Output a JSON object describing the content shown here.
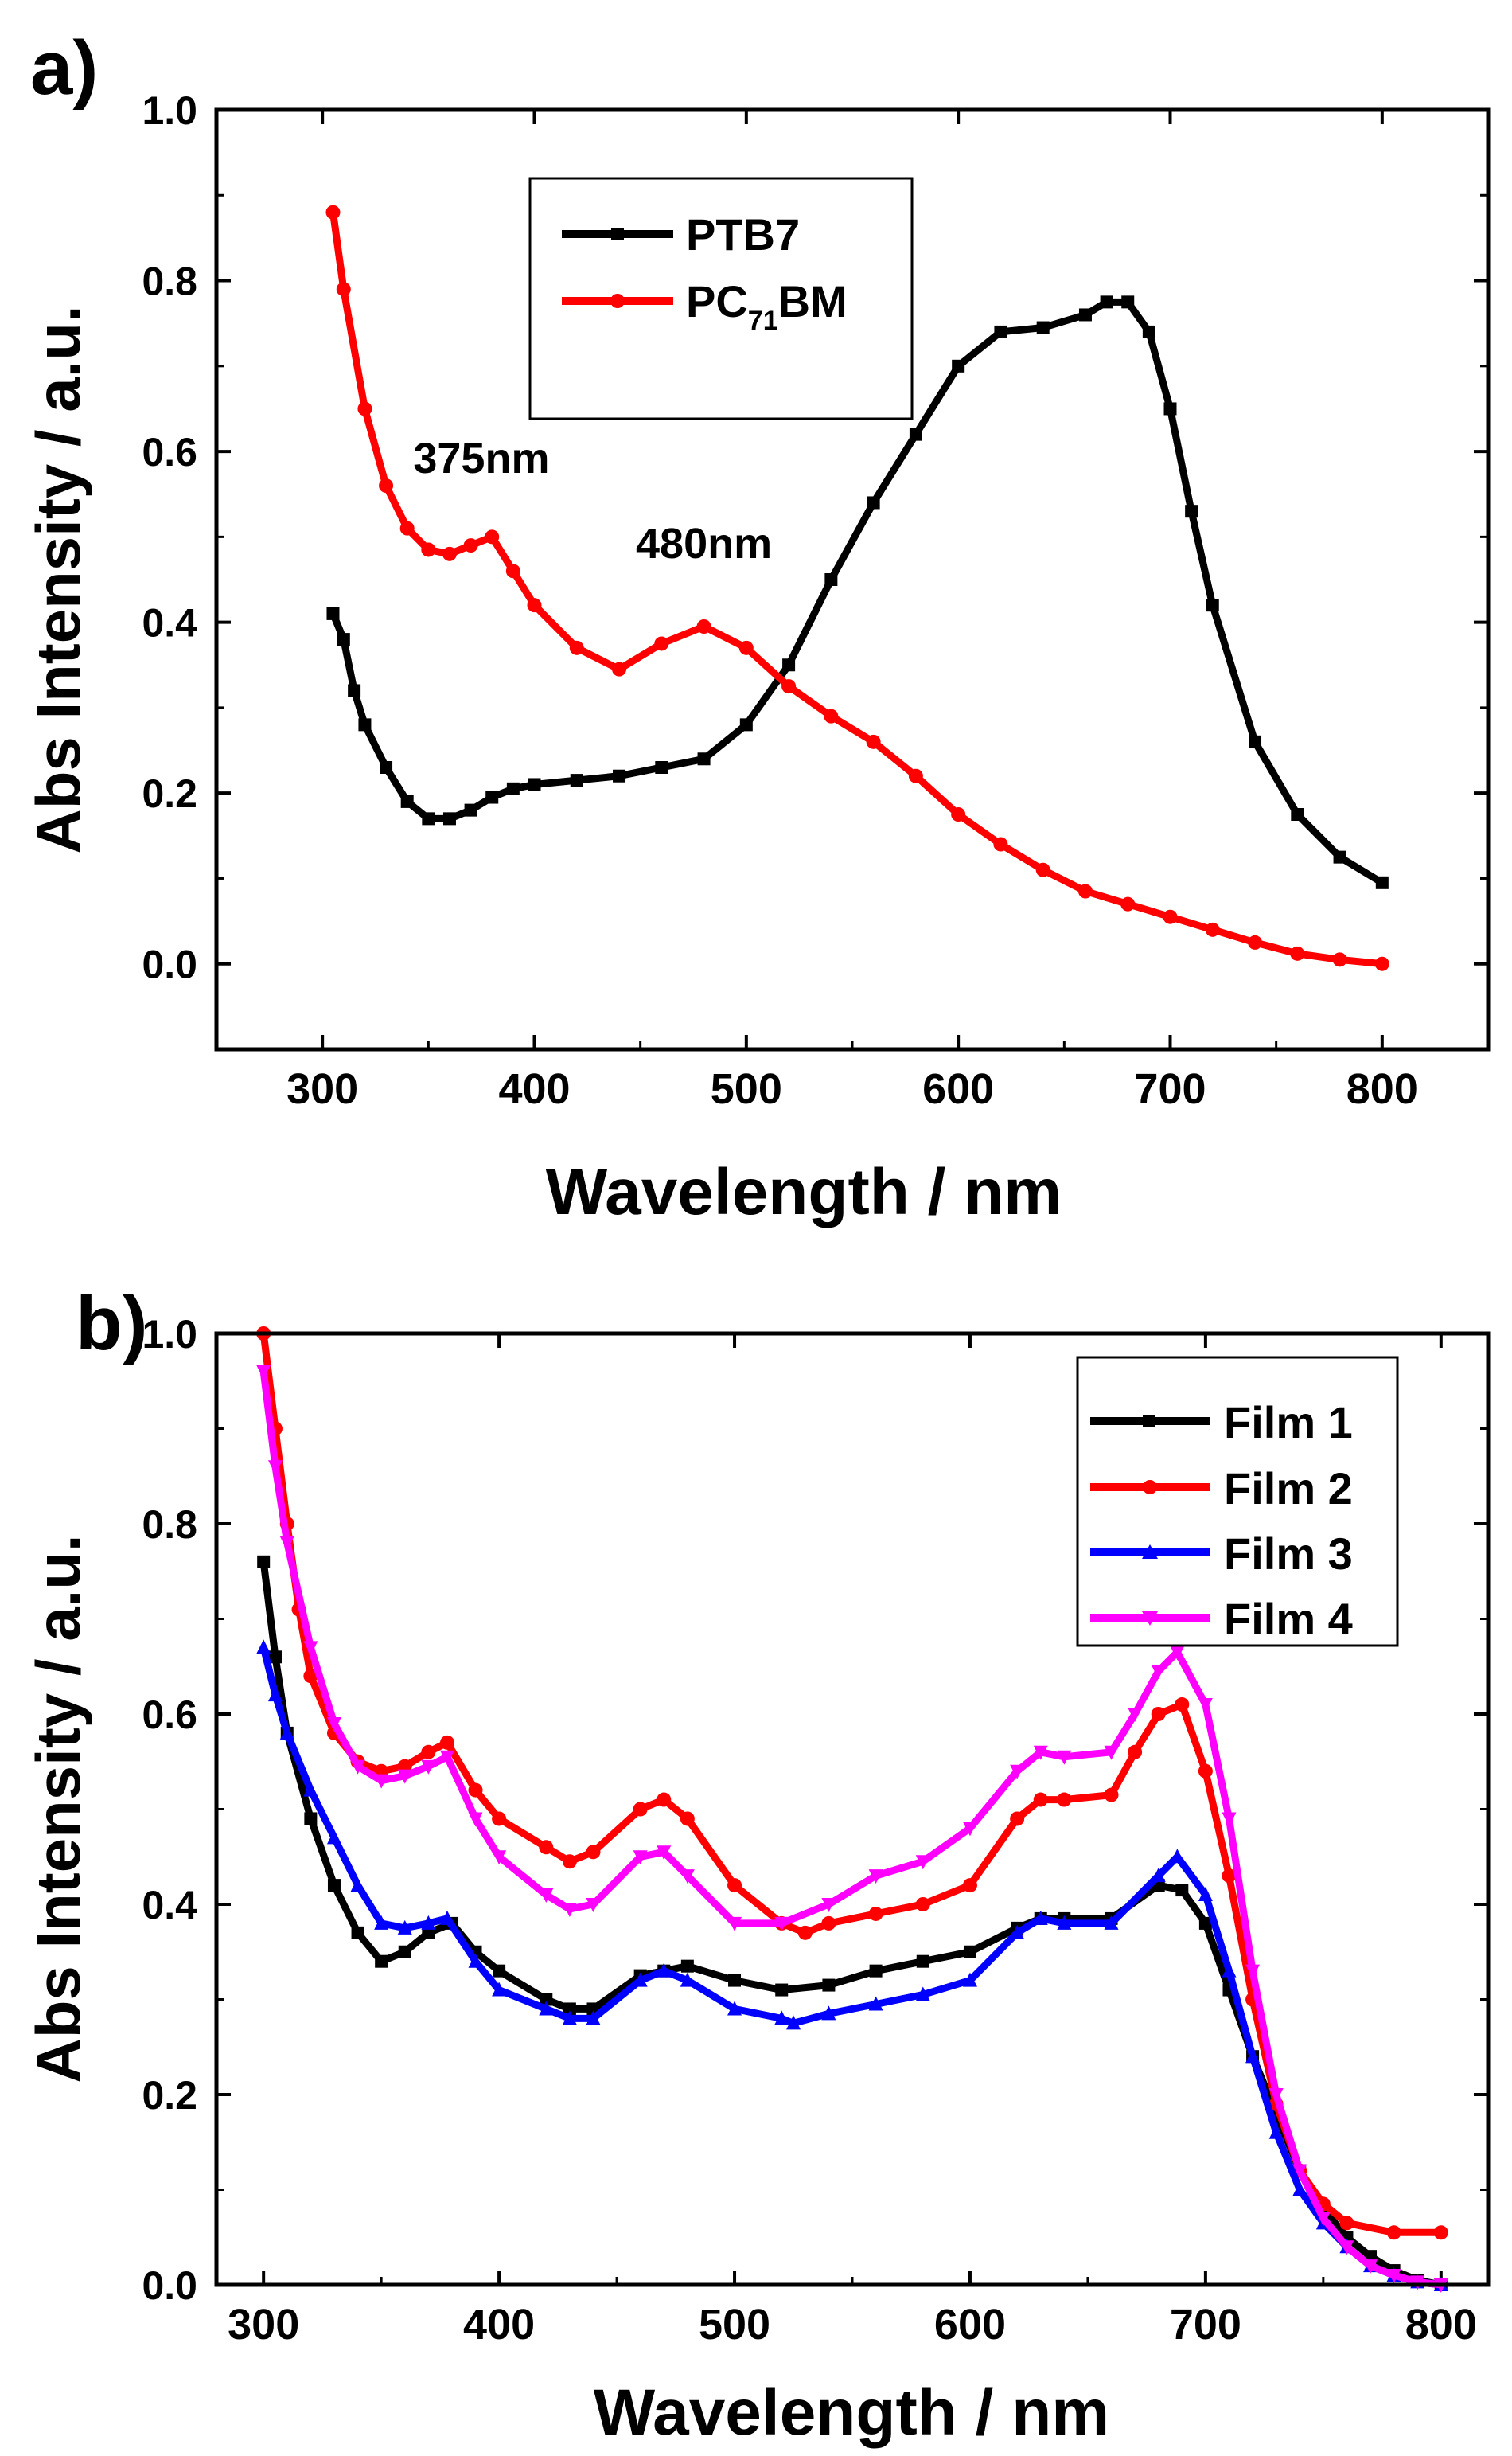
{
  "chart_data": [
    {
      "type": "line",
      "panel_label": "a)",
      "xlabel": "Wavelength / nm",
      "ylabel": "Abs Intensity / a.u.",
      "xlim": [
        250,
        850
      ],
      "ylim": [
        -0.1,
        1.0
      ],
      "xticks": [
        300,
        400,
        500,
        600,
        700,
        800
      ],
      "yticks": [
        0.0,
        0.2,
        0.4,
        0.6,
        0.8,
        1.0
      ],
      "xtick_labels": [
        "300",
        "400",
        "500",
        "600",
        "700",
        "800"
      ],
      "ytick_labels": [
        "0.0",
        "0.2",
        "0.4",
        "0.6",
        "0.8",
        "1.0"
      ],
      "legend_position": "top-left",
      "legend": [
        {
          "label": "PTB7",
          "marker": "square",
          "color": "#000000"
        },
        {
          "label_main": "PC",
          "label_sub": "71",
          "label_tail": "BM",
          "marker": "circle",
          "color": "#ff0000"
        }
      ],
      "annotations": [
        {
          "text": "375nm",
          "x": 375,
          "y": 0.575
        },
        {
          "text": "480nm",
          "x": 480,
          "y": 0.475
        }
      ],
      "series": [
        {
          "name": "PTB7",
          "color": "#000000",
          "marker": "square",
          "x": [
            305,
            310,
            315,
            320,
            330,
            340,
            350,
            360,
            370,
            380,
            390,
            400,
            420,
            440,
            460,
            480,
            500,
            520,
            540,
            560,
            580,
            600,
            620,
            640,
            660,
            670,
            680,
            690,
            700,
            710,
            720,
            740,
            760,
            780,
            800
          ],
          "y": [
            0.41,
            0.38,
            0.32,
            0.28,
            0.23,
            0.19,
            0.17,
            0.17,
            0.18,
            0.195,
            0.205,
            0.21,
            0.215,
            0.22,
            0.23,
            0.24,
            0.28,
            0.35,
            0.45,
            0.54,
            0.62,
            0.7,
            0.74,
            0.745,
            0.76,
            0.775,
            0.775,
            0.74,
            0.65,
            0.53,
            0.42,
            0.26,
            0.175,
            0.125,
            0.095
          ]
        },
        {
          "name": "PC71BM",
          "color": "#ff0000",
          "marker": "circle",
          "x": [
            305,
            310,
            320,
            330,
            340,
            350,
            360,
            370,
            380,
            390,
            400,
            420,
            440,
            460,
            480,
            500,
            520,
            540,
            560,
            580,
            600,
            620,
            640,
            660,
            680,
            700,
            720,
            740,
            760,
            780,
            800
          ],
          "y": [
            0.88,
            0.79,
            0.65,
            0.56,
            0.51,
            0.485,
            0.48,
            0.49,
            0.5,
            0.46,
            0.42,
            0.37,
            0.345,
            0.375,
            0.395,
            0.37,
            0.325,
            0.29,
            0.26,
            0.22,
            0.175,
            0.14,
            0.11,
            0.085,
            0.07,
            0.055,
            0.04,
            0.025,
            0.012,
            0.005,
            0.0
          ]
        }
      ]
    },
    {
      "type": "line",
      "panel_label": "b)",
      "xlabel": "Wavelength / nm",
      "ylabel": "Abs Intensity / a.u.",
      "xlim": [
        280,
        820
      ],
      "ylim": [
        0.0,
        1.0
      ],
      "xticks": [
        300,
        400,
        500,
        600,
        700,
        800
      ],
      "yticks": [
        0.0,
        0.2,
        0.4,
        0.6,
        0.8,
        1.0
      ],
      "xtick_labels": [
        "300",
        "400",
        "500",
        "600",
        "700",
        "800"
      ],
      "ytick_labels": [
        "0.0",
        "0.2",
        "0.4",
        "0.6",
        "0.8",
        "1.0"
      ],
      "legend_position": "top-right",
      "legend": [
        {
          "label": "Film 1",
          "marker": "square",
          "color": "#000000"
        },
        {
          "label": "Film 2",
          "marker": "circle",
          "color": "#ff0000"
        },
        {
          "label": "Film 3",
          "marker": "triangle-up",
          "color": "#0000ff"
        },
        {
          "label": "Film 4",
          "marker": "triangle-down",
          "color": "#ff00ff"
        }
      ],
      "series": [
        {
          "name": "Film 1",
          "color": "#000000",
          "marker": "square",
          "x": [
            300,
            305,
            310,
            320,
            330,
            340,
            350,
            360,
            370,
            380,
            390,
            400,
            420,
            430,
            440,
            460,
            470,
            480,
            500,
            520,
            540,
            560,
            580,
            600,
            620,
            630,
            640,
            660,
            680,
            690,
            700,
            710,
            720,
            730,
            740,
            750,
            760,
            770,
            780,
            790,
            800
          ],
          "y": [
            0.76,
            0.66,
            0.58,
            0.49,
            0.42,
            0.37,
            0.34,
            0.35,
            0.37,
            0.38,
            0.35,
            0.33,
            0.3,
            0.29,
            0.29,
            0.325,
            0.33,
            0.335,
            0.32,
            0.31,
            0.315,
            0.33,
            0.34,
            0.35,
            0.375,
            0.385,
            0.385,
            0.385,
            0.42,
            0.415,
            0.38,
            0.31,
            0.24,
            0.18,
            0.12,
            0.08,
            0.05,
            0.03,
            0.015,
            0.005,
            0.0
          ]
        },
        {
          "name": "Film 2",
          "color": "#ff0000",
          "marker": "circle",
          "x": [
            300,
            305,
            310,
            315,
            320,
            330,
            340,
            350,
            360,
            370,
            378,
            390,
            400,
            420,
            430,
            440,
            460,
            470,
            480,
            500,
            520,
            530,
            540,
            560,
            580,
            600,
            620,
            630,
            640,
            660,
            670,
            680,
            690,
            700,
            710,
            720,
            730,
            740,
            750,
            760,
            780,
            800
          ],
          "y": [
            1.0,
            0.9,
            0.8,
            0.71,
            0.64,
            0.58,
            0.55,
            0.54,
            0.545,
            0.56,
            0.57,
            0.52,
            0.49,
            0.46,
            0.445,
            0.455,
            0.5,
            0.51,
            0.49,
            0.42,
            0.38,
            0.37,
            0.38,
            0.39,
            0.4,
            0.42,
            0.49,
            0.51,
            0.51,
            0.515,
            0.56,
            0.6,
            0.61,
            0.54,
            0.43,
            0.3,
            0.19,
            0.12,
            0.085,
            0.065,
            0.055,
            0.055
          ]
        },
        {
          "name": "Film 3",
          "color": "#0000ff",
          "marker": "triangle-up",
          "x": [
            300,
            305,
            310,
            320,
            330,
            340,
            350,
            360,
            370,
            378,
            390,
            400,
            420,
            430,
            440,
            460,
            470,
            480,
            500,
            520,
            525,
            540,
            560,
            580,
            600,
            620,
            630,
            640,
            660,
            680,
            688,
            700,
            710,
            720,
            730,
            740,
            750,
            760,
            770,
            780,
            790,
            800
          ],
          "y": [
            0.67,
            0.62,
            0.58,
            0.52,
            0.47,
            0.42,
            0.38,
            0.375,
            0.38,
            0.385,
            0.34,
            0.31,
            0.29,
            0.28,
            0.28,
            0.32,
            0.33,
            0.32,
            0.29,
            0.28,
            0.275,
            0.285,
            0.295,
            0.305,
            0.32,
            0.37,
            0.385,
            0.38,
            0.38,
            0.43,
            0.45,
            0.41,
            0.33,
            0.24,
            0.16,
            0.1,
            0.065,
            0.04,
            0.02,
            0.01,
            0.003,
            0.0
          ]
        },
        {
          "name": "Film 4",
          "color": "#ff00ff",
          "marker": "triangle-down",
          "x": [
            300,
            305,
            310,
            320,
            330,
            340,
            350,
            360,
            370,
            378,
            390,
            400,
            420,
            430,
            440,
            460,
            470,
            480,
            500,
            520,
            540,
            560,
            580,
            600,
            620,
            630,
            640,
            660,
            670,
            680,
            688,
            700,
            710,
            720,
            730,
            740,
            750,
            760,
            770,
            780,
            790,
            800
          ],
          "y": [
            0.96,
            0.86,
            0.78,
            0.67,
            0.59,
            0.545,
            0.53,
            0.535,
            0.545,
            0.555,
            0.49,
            0.45,
            0.41,
            0.395,
            0.4,
            0.45,
            0.455,
            0.43,
            0.38,
            0.38,
            0.4,
            0.43,
            0.445,
            0.48,
            0.54,
            0.56,
            0.555,
            0.56,
            0.6,
            0.645,
            0.665,
            0.61,
            0.49,
            0.33,
            0.2,
            0.12,
            0.07,
            0.04,
            0.02,
            0.01,
            0.003,
            0.0
          ]
        }
      ]
    }
  ]
}
